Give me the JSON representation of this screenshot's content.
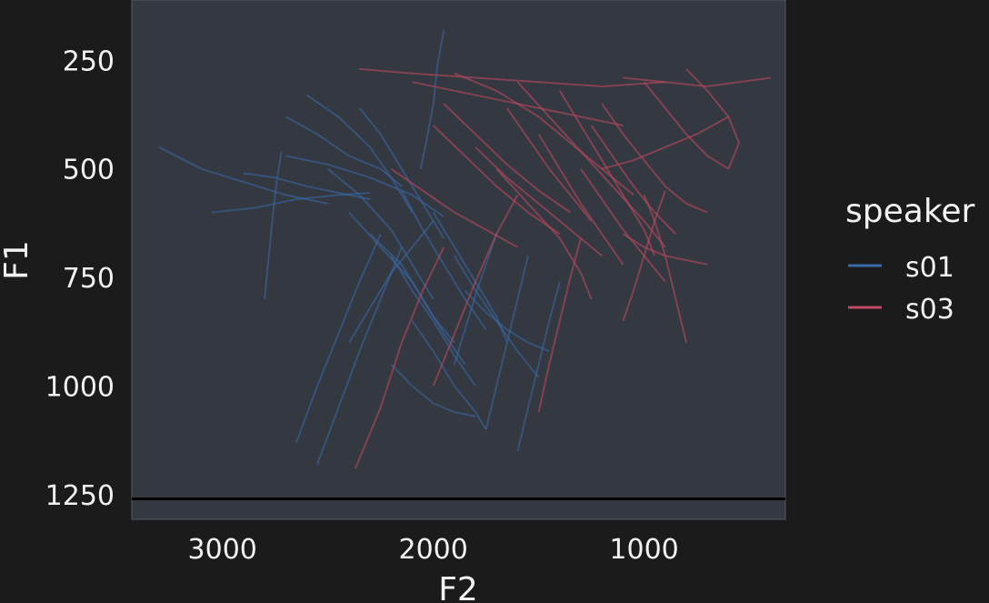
{
  "chart_data": {
    "type": "line",
    "title": "",
    "xlabel": "F2",
    "ylabel": "F1",
    "x_reversed": true,
    "y_reversed": true,
    "xlim": [
      3430,
      330
    ],
    "ylim": [
      111,
      1307
    ],
    "x_ticks": [
      3000,
      2000,
      1000
    ],
    "x_tick_labels": [
      "3000",
      "2000",
      "1000"
    ],
    "y_ticks": [
      250,
      500,
      750,
      1000,
      1250
    ],
    "y_tick_labels": [
      "250",
      "500",
      "750",
      "1000",
      "1250"
    ],
    "reference_line": {
      "y": 1260,
      "color": "#000000"
    },
    "grid": false,
    "panel_color": "#343841",
    "legend": {
      "title": "speaker",
      "position": "right",
      "entries": [
        {
          "label": "s01",
          "color": "#3a6aa8"
        },
        {
          "label": "s03",
          "color": "#c24a60"
        }
      ]
    },
    "series": [
      {
        "name": "s01",
        "color": "#3a6aa8",
        "trajectories": [
          [
            [
              2700,
              380
            ],
            [
              2550,
              420
            ],
            [
              2400,
              470
            ],
            [
              2250,
              500
            ],
            [
              2150,
              540
            ]
          ],
          [
            [
              3300,
              450
            ],
            [
              3100,
              500
            ],
            [
              2900,
              530
            ],
            [
              2700,
              560
            ],
            [
              2500,
              580
            ]
          ],
          [
            [
              3050,
              600
            ],
            [
              2850,
              590
            ],
            [
              2650,
              570
            ],
            [
              2450,
              560
            ],
            [
              2300,
              555
            ]
          ],
          [
            [
              2600,
              330
            ],
            [
              2450,
              380
            ],
            [
              2300,
              450
            ],
            [
              2200,
              520
            ],
            [
              2100,
              600
            ]
          ],
          [
            [
              2500,
              500
            ],
            [
              2350,
              560
            ],
            [
              2200,
              640
            ],
            [
              2100,
              720
            ],
            [
              2000,
              800
            ]
          ],
          [
            [
              2400,
              600
            ],
            [
              2250,
              680
            ],
            [
              2100,
              760
            ],
            [
              2000,
              840
            ],
            [
              1900,
              900
            ]
          ],
          [
            [
              2300,
              650
            ],
            [
              2150,
              720
            ],
            [
              2050,
              800
            ],
            [
              1950,
              880
            ],
            [
              1850,
              950
            ]
          ],
          [
            [
              2200,
              700
            ],
            [
              2100,
              780
            ],
            [
              2000,
              850
            ],
            [
              1900,
              930
            ],
            [
              1800,
              1000
            ]
          ],
          [
            [
              2150,
              550
            ],
            [
              2050,
              640
            ],
            [
              1950,
              720
            ],
            [
              1850,
              800
            ],
            [
              1750,
              870
            ]
          ],
          [
            [
              2000,
              600
            ],
            [
              1900,
              680
            ],
            [
              1800,
              760
            ],
            [
              1700,
              840
            ],
            [
              1650,
              900
            ]
          ],
          [
            [
              1900,
              700
            ],
            [
              1800,
              780
            ],
            [
              1700,
              850
            ],
            [
              1600,
              920
            ],
            [
              1500,
              980
            ]
          ],
          [
            [
              2100,
              850
            ],
            [
              2000,
              920
            ],
            [
              1900,
              1000
            ],
            [
              1800,
              1060
            ],
            [
              1750,
              1100
            ]
          ],
          [
            [
              2550,
              1180
            ],
            [
              2450,
              1050
            ],
            [
              2350,
              920
            ],
            [
              2250,
              800
            ],
            [
              2150,
              680
            ]
          ],
          [
            [
              2650,
              1130
            ],
            [
              2550,
              1000
            ],
            [
              2450,
              880
            ],
            [
              2350,
              760
            ],
            [
              2250,
              650
            ]
          ],
          [
            [
              2400,
              900
            ],
            [
              2300,
              820
            ],
            [
              2200,
              740
            ],
            [
              2100,
              680
            ],
            [
              2000,
              620
            ]
          ],
          [
            [
              1900,
              950
            ],
            [
              1850,
              870
            ],
            [
              1800,
              790
            ],
            [
              1750,
              720
            ],
            [
              1700,
              650
            ]
          ],
          [
            [
              1750,
              1100
            ],
            [
              1700,
              1000
            ],
            [
              1650,
              900
            ],
            [
              1600,
              800
            ],
            [
              1550,
              700
            ]
          ],
          [
            [
              1600,
              1150
            ],
            [
              1550,
              1050
            ],
            [
              1500,
              950
            ],
            [
              1450,
              850
            ],
            [
              1400,
              760
            ]
          ],
          [
            [
              2900,
              510
            ],
            [
              2750,
              520
            ],
            [
              2600,
              540
            ],
            [
              2450,
              555
            ],
            [
              2300,
              570
            ]
          ],
          [
            [
              2700,
              470
            ],
            [
              2500,
              490
            ],
            [
              2300,
              520
            ],
            [
              2100,
              560
            ],
            [
              1950,
              610
            ]
          ],
          [
            [
              2350,
              360
            ],
            [
              2250,
              420
            ],
            [
              2150,
              500
            ],
            [
              2050,
              580
            ],
            [
              1950,
              660
            ]
          ],
          [
            [
              2800,
              800
            ],
            [
              2780,
              700
            ],
            [
              2760,
              600
            ],
            [
              2740,
              520
            ],
            [
              2720,
              460
            ]
          ],
          [
            [
              1850,
              780
            ],
            [
              1750,
              830
            ],
            [
              1650,
              870
            ],
            [
              1550,
              900
            ],
            [
              1450,
              920
            ]
          ],
          [
            [
              2200,
              950
            ],
            [
              2100,
              1000
            ],
            [
              2000,
              1040
            ],
            [
              1900,
              1060
            ],
            [
              1800,
              1070
            ]
          ],
          [
            [
              1950,
              180
            ],
            [
              1980,
              260
            ],
            [
              2000,
              350
            ],
            [
              2030,
              430
            ],
            [
              2060,
              500
            ]
          ]
        ]
      },
      {
        "name": "s03",
        "color": "#c24a60",
        "trajectories": [
          [
            [
              2350,
              270
            ],
            [
              2100,
              280
            ],
            [
              1800,
              290
            ],
            [
              1500,
              300
            ],
            [
              1200,
              310
            ],
            [
              900,
              300
            ]
          ],
          [
            [
              2100,
              300
            ],
            [
              1900,
              320
            ],
            [
              1700,
              340
            ],
            [
              1500,
              360
            ],
            [
              1300,
              380
            ],
            [
              1100,
              400
            ]
          ],
          [
            [
              1900,
              280
            ],
            [
              1700,
              320
            ],
            [
              1500,
              380
            ],
            [
              1350,
              440
            ],
            [
              1200,
              500
            ],
            [
              1050,
              560
            ]
          ],
          [
            [
              1600,
              300
            ],
            [
              1450,
              380
            ],
            [
              1300,
              460
            ],
            [
              1150,
              540
            ],
            [
              1000,
              620
            ],
            [
              900,
              680
            ]
          ],
          [
            [
              1400,
              320
            ],
            [
              1300,
              400
            ],
            [
              1200,
              480
            ],
            [
              1100,
              560
            ],
            [
              1000,
              640
            ],
            [
              950,
              700
            ]
          ],
          [
            [
              1200,
              350
            ],
            [
              1100,
              420
            ],
            [
              1000,
              480
            ],
            [
              900,
              540
            ],
            [
              800,
              580
            ],
            [
              700,
              600
            ]
          ],
          [
            [
              1000,
              300
            ],
            [
              900,
              360
            ],
            [
              800,
              420
            ],
            [
              700,
              470
            ],
            [
              600,
              500
            ]
          ],
          [
            [
              800,
              270
            ],
            [
              700,
              320
            ],
            [
              600,
              380
            ],
            [
              550,
              440
            ],
            [
              600,
              500
            ]
          ],
          [
            [
              1800,
              450
            ],
            [
              1650,
              520
            ],
            [
              1500,
              580
            ],
            [
              1350,
              640
            ],
            [
              1200,
              700
            ]
          ],
          [
            [
              1700,
              500
            ],
            [
              1550,
              580
            ],
            [
              1400,
              660
            ],
            [
              1300,
              740
            ],
            [
              1250,
              800
            ]
          ],
          [
            [
              2000,
              400
            ],
            [
              1850,
              470
            ],
            [
              1700,
              540
            ],
            [
              1550,
              600
            ],
            [
              1400,
              650
            ]
          ],
          [
            [
              1500,
              420
            ],
            [
              1400,
              500
            ],
            [
              1300,
              580
            ],
            [
              1200,
              650
            ],
            [
              1100,
              720
            ]
          ],
          [
            [
              1300,
              500
            ],
            [
              1200,
              570
            ],
            [
              1100,
              640
            ],
            [
              1000,
              700
            ],
            [
              900,
              760
            ]
          ],
          [
            [
              2370,
              1190
            ],
            [
              2250,
              1050
            ],
            [
              2150,
              900
            ],
            [
              2050,
              780
            ],
            [
              1950,
              680
            ]
          ],
          [
            [
              2000,
              1000
            ],
            [
              1900,
              880
            ],
            [
              1800,
              760
            ],
            [
              1700,
              650
            ],
            [
              1600,
              560
            ]
          ],
          [
            [
              1500,
              1060
            ],
            [
              1450,
              950
            ],
            [
              1400,
              850
            ],
            [
              1350,
              750
            ],
            [
              1300,
              660
            ]
          ],
          [
            [
              1100,
              850
            ],
            [
              1050,
              780
            ],
            [
              1000,
              700
            ],
            [
              950,
              620
            ],
            [
              900,
              550
            ]
          ],
          [
            [
              800,
              900
            ],
            [
              850,
              800
            ],
            [
              900,
              700
            ],
            [
              950,
              620
            ],
            [
              1000,
              560
            ]
          ],
          [
            [
              400,
              290
            ],
            [
              550,
              300
            ],
            [
              700,
              310
            ],
            [
              900,
              300
            ],
            [
              1100,
              290
            ]
          ],
          [
            [
              600,
              380
            ],
            [
              750,
              420
            ],
            [
              900,
              450
            ],
            [
              1050,
              480
            ],
            [
              1200,
              500
            ]
          ],
          [
            [
              1650,
              360
            ],
            [
              1550,
              430
            ],
            [
              1450,
              500
            ],
            [
              1350,
              560
            ],
            [
              1250,
              620
            ]
          ],
          [
            [
              2200,
              500
            ],
            [
              2050,
              550
            ],
            [
              1900,
              600
            ],
            [
              1750,
              640
            ],
            [
              1600,
              680
            ]
          ],
          [
            [
              1100,
              650
            ],
            [
              1000,
              680
            ],
            [
              900,
              700
            ],
            [
              800,
              710
            ],
            [
              700,
              720
            ]
          ],
          [
            [
              1250,
              400
            ],
            [
              1150,
              470
            ],
            [
              1050,
              540
            ],
            [
              950,
              600
            ],
            [
              850,
              650
            ]
          ],
          [
            [
              1950,
              350
            ],
            [
              1800,
              420
            ],
            [
              1650,
              490
            ],
            [
              1500,
              550
            ],
            [
              1350,
              600
            ]
          ]
        ]
      }
    ]
  }
}
